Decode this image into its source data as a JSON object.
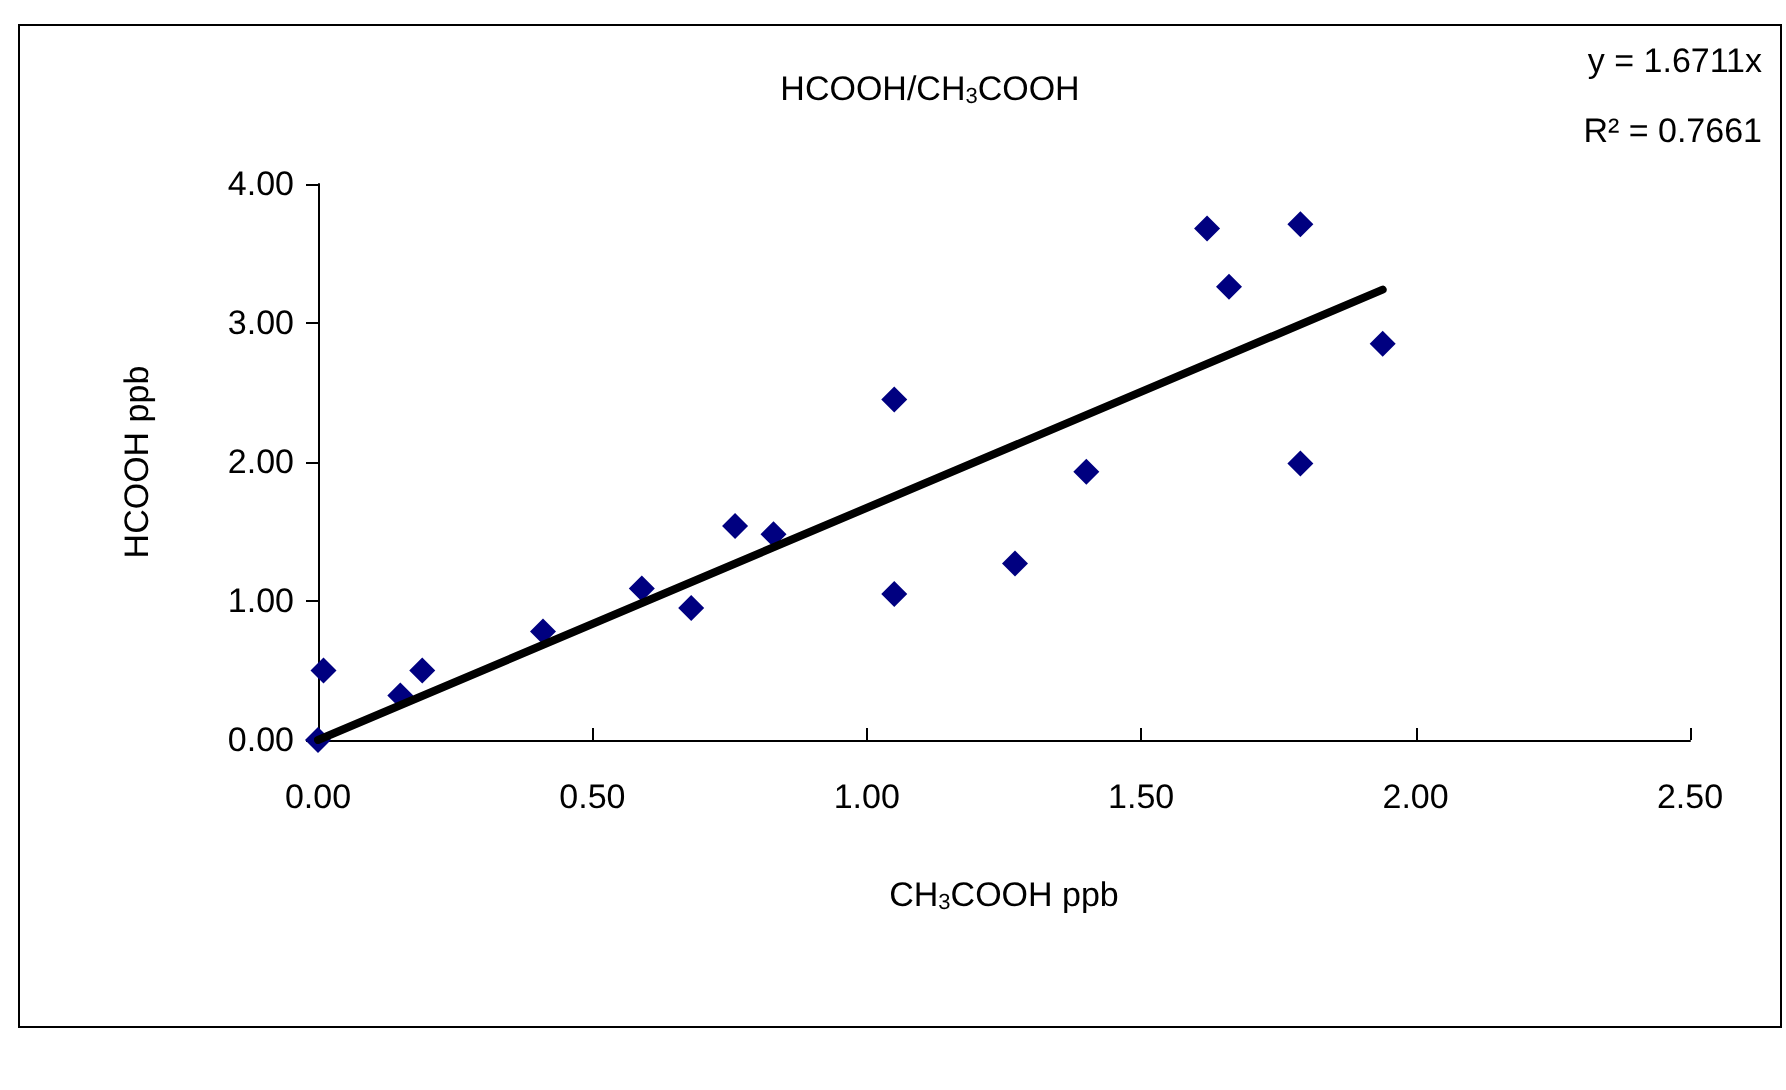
{
  "chart_data": {
    "type": "scatter",
    "title": "HCOOH/CH$_{3}$COOH",
    "xlabel": "CH$_{3}$COOH ppb",
    "ylabel": "HCOOH ppb",
    "annotations": [
      "y = 1.6711x",
      "R² = 0.7661"
    ],
    "series": [
      {
        "color": "#000080",
        "marker": "diamond",
        "x": [
          0,
          0.01,
          0.15,
          0.19,
          0.41,
          0.59,
          0.68,
          0.76,
          0.83,
          1.05,
          1.05,
          1.27,
          1.4,
          1.62,
          1.66,
          1.79,
          1.79,
          1.94
        ],
        "values": [
          0,
          0.5,
          0.32,
          0.5,
          0.78,
          1.09,
          0.95,
          1.54,
          1.48,
          2.45,
          1.05,
          1.27,
          1.93,
          3.68,
          3.26,
          3.71,
          1.99,
          2.85
        ]
      },
      {
        "type": "line",
        "color": "#000000",
        "marker": "none",
        "x": [
          0,
          1.94
        ],
        "values": [
          0,
          3.24
        ]
      }
    ],
    "xlim": [
      0,
      2.5
    ],
    "xticks": [
      {
        "value": 0,
        "label": "0.00"
      },
      {
        "value": 0.5,
        "label": "0.50"
      },
      {
        "value": 1,
        "label": "1.00"
      },
      {
        "value": 1.5,
        "label": "1.50"
      },
      {
        "value": 2,
        "label": "2.00"
      },
      {
        "value": 2.5,
        "label": "2.50"
      }
    ],
    "ylim": [
      0,
      4
    ],
    "yticks": [
      {
        "value": 0,
        "label": "0.00"
      },
      {
        "value": 1,
        "label": "1.00"
      },
      {
        "value": 2,
        "label": "2.00"
      },
      {
        "value": 3,
        "label": "3.00"
      },
      {
        "value": 4,
        "label": "4.00"
      }
    ],
    "grid": false
  }
}
